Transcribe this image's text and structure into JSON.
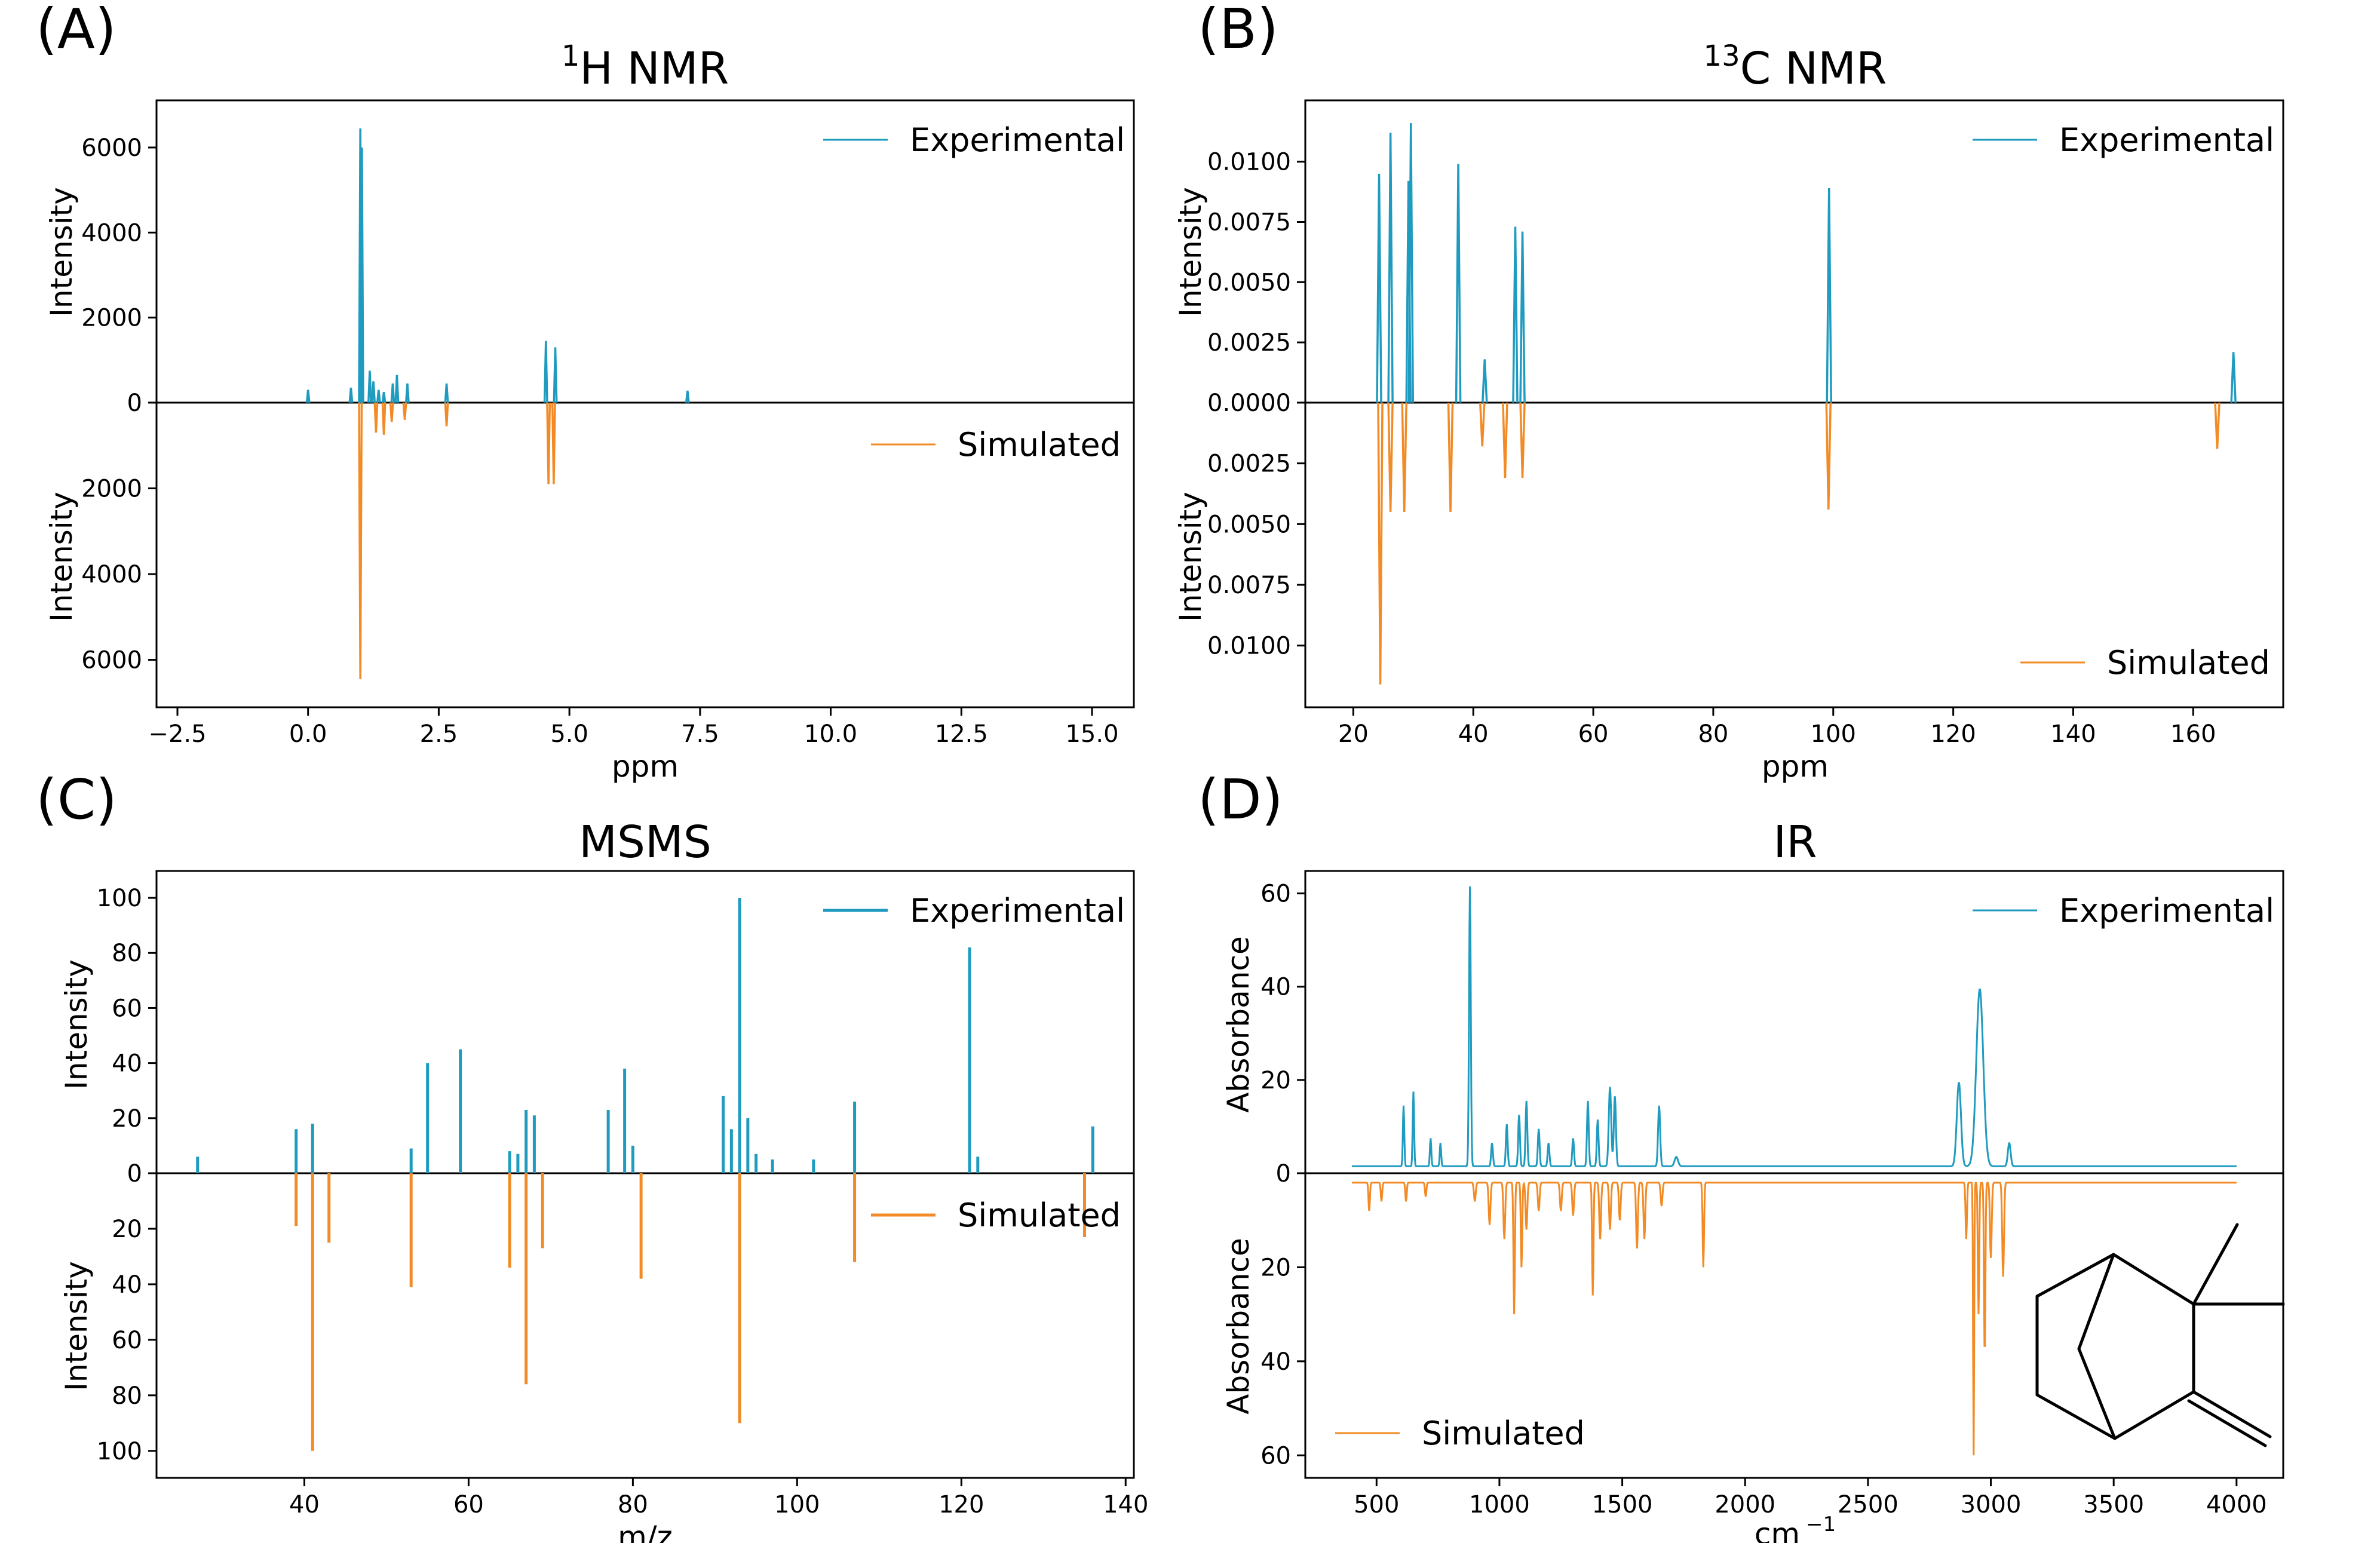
{
  "figure": {
    "colors": {
      "experimental": "#1f9bbf",
      "simulated": "#f28b25",
      "axis": "#000000",
      "molecule": "#000000"
    }
  },
  "chart_data": [
    {
      "panel": "(A)",
      "type": "line",
      "title_sup": "1",
      "title_main": "H NMR",
      "xlabel": "ppm",
      "ylabel_top": "Intensity",
      "ylabel_bottom": "Intensity",
      "xlim": [
        -2.9,
        15.8
      ],
      "ylim_top": [
        0,
        6800
      ],
      "ylim_bottom": [
        0,
        6800
      ],
      "xticks": [
        -2.5,
        0.0,
        2.5,
        5.0,
        7.5,
        10.0,
        12.5,
        15.0
      ],
      "xtick_labels": [
        "−2.5",
        "0.0",
        "2.5",
        "5.0",
        "7.5",
        "10.0",
        "12.5",
        "15.0"
      ],
      "yticks_top": [
        0,
        2000,
        4000,
        6000
      ],
      "ytick_labels_top": [
        "0",
        "2000",
        "4000",
        "6000"
      ],
      "yticks_bottom": [
        2000,
        4000,
        6000
      ],
      "ytick_labels_bottom": [
        "2000",
        "4000",
        "6000"
      ],
      "legend_experimental": "Experimental",
      "legend_simulated": "Simulated",
      "legend_experimental_loc": "top-right",
      "legend_simulated_loc": "top-right-of-lower-half",
      "experimental_peaks": [
        [
          0.0,
          300
        ],
        [
          0.82,
          350
        ],
        [
          1.0,
          6450
        ],
        [
          1.03,
          6000
        ],
        [
          1.18,
          750
        ],
        [
          1.25,
          500
        ],
        [
          1.35,
          300
        ],
        [
          1.45,
          250
        ],
        [
          1.62,
          450
        ],
        [
          1.7,
          650
        ],
        [
          1.9,
          450
        ],
        [
          2.65,
          450
        ],
        [
          4.55,
          1450
        ],
        [
          4.73,
          1300
        ],
        [
          7.26,
          280
        ]
      ],
      "simulated_peaks": [
        [
          1.0,
          6450
        ],
        [
          1.3,
          700
        ],
        [
          1.45,
          750
        ],
        [
          1.6,
          450
        ],
        [
          1.85,
          400
        ],
        [
          2.65,
          550
        ],
        [
          4.6,
          1900
        ],
        [
          4.7,
          1900
        ]
      ],
      "peak_width": 0.025
    },
    {
      "panel": "(B)",
      "type": "line",
      "title_sup": "13",
      "title_main": "C NMR",
      "xlabel": "ppm",
      "ylabel_top": "Intensity",
      "ylabel_bottom": "Intensity",
      "xlim": [
        12,
        175
      ],
      "ylim_top": [
        0,
        0.012
      ],
      "ylim_bottom": [
        0,
        0.012
      ],
      "xticks": [
        20,
        40,
        60,
        80,
        100,
        120,
        140,
        160
      ],
      "xtick_labels": [
        "20",
        "40",
        "60",
        "80",
        "100",
        "120",
        "140",
        "160"
      ],
      "yticks_top": [
        0,
        0.0025,
        0.005,
        0.0075,
        0.01
      ],
      "ytick_labels_top": [
        "0.0000",
        "0.0025",
        "0.0050",
        "0.0075",
        "0.0100"
      ],
      "yticks_bottom": [
        0.0025,
        0.005,
        0.0075,
        0.01
      ],
      "ytick_labels_bottom": [
        "0.0025",
        "0.0050",
        "0.0075",
        "0.0100"
      ],
      "legend_experimental": "Experimental",
      "legend_simulated": "Simulated",
      "legend_experimental_loc": "top-right",
      "legend_simulated_loc": "lower-right",
      "experimental_peaks": [
        [
          24.3,
          0.0095
        ],
        [
          26.2,
          0.0112
        ],
        [
          29.2,
          0.0092
        ],
        [
          29.6,
          0.0116
        ],
        [
          37.5,
          0.0099
        ],
        [
          41.9,
          0.0018
        ],
        [
          47.0,
          0.0073
        ],
        [
          48.2,
          0.0071
        ],
        [
          99.3,
          0.0089
        ],
        [
          166.7,
          0.0021
        ]
      ],
      "simulated_peaks": [
        [
          24.5,
          0.0116
        ],
        [
          26.2,
          0.0045
        ],
        [
          28.5,
          0.0045
        ],
        [
          36.2,
          0.0045
        ],
        [
          41.5,
          0.0018
        ],
        [
          45.3,
          0.0031
        ],
        [
          48.2,
          0.0031
        ],
        [
          99.2,
          0.0044
        ],
        [
          164.0,
          0.0019
        ]
      ],
      "peak_width": 0.35
    },
    {
      "panel": "(C)",
      "type": "bar",
      "title_main": "MSMS",
      "xlabel": "m/z",
      "ylabel_top": "Intensity",
      "ylabel_bottom": "Intensity",
      "xlim": [
        22,
        141
      ],
      "ylim_top": [
        0,
        105
      ],
      "ylim_bottom": [
        0,
        105
      ],
      "xticks": [
        40,
        60,
        80,
        100,
        120,
        140
      ],
      "xtick_labels": [
        "40",
        "60",
        "80",
        "100",
        "120",
        "140"
      ],
      "yticks_top": [
        0,
        20,
        40,
        60,
        80,
        100
      ],
      "ytick_labels_top": [
        "0",
        "20",
        "40",
        "60",
        "80",
        "100"
      ],
      "yticks_bottom": [
        20,
        40,
        60,
        80,
        100
      ],
      "ytick_labels_bottom": [
        "20",
        "40",
        "60",
        "80",
        "100"
      ],
      "legend_experimental": "Experimental",
      "legend_simulated": "Simulated",
      "legend_experimental_loc": "top-right",
      "legend_simulated_loc": "top-right-of-lower-half",
      "experimental_peaks": [
        [
          27,
          6
        ],
        [
          39,
          16
        ],
        [
          41,
          18
        ],
        [
          53,
          9
        ],
        [
          55,
          40
        ],
        [
          59,
          45
        ],
        [
          65,
          8
        ],
        [
          66,
          7
        ],
        [
          67,
          23
        ],
        [
          68,
          21
        ],
        [
          77,
          23
        ],
        [
          79,
          38
        ],
        [
          80,
          10
        ],
        [
          91,
          28
        ],
        [
          92,
          16
        ],
        [
          93,
          100
        ],
        [
          94,
          20
        ],
        [
          95,
          7
        ],
        [
          97,
          5
        ],
        [
          102,
          5
        ],
        [
          107,
          26
        ],
        [
          121,
          82
        ],
        [
          122,
          6
        ],
        [
          136,
          17
        ]
      ],
      "simulated_peaks": [
        [
          39,
          19
        ],
        [
          41,
          100
        ],
        [
          43,
          25
        ],
        [
          53,
          41
        ],
        [
          65,
          34
        ],
        [
          67,
          76
        ],
        [
          69,
          27
        ],
        [
          81,
          38
        ],
        [
          93,
          90
        ],
        [
          107,
          32
        ],
        [
          135,
          23
        ]
      ]
    },
    {
      "panel": "(D)",
      "type": "line",
      "title_main": "IR",
      "xlabel": "cm",
      "xlabel_sup": "−1",
      "ylabel_top": "Absorbance",
      "ylabel_bottom": "Absorbance",
      "xlim": [
        210,
        4190
      ],
      "ylim_top": [
        0,
        62
      ],
      "ylim_bottom": [
        0,
        62
      ],
      "xticks": [
        500,
        1000,
        1500,
        2000,
        2500,
        3000,
        3500,
        4000
      ],
      "xtick_labels": [
        "500",
        "1000",
        "1500",
        "2000",
        "2500",
        "3000",
        "3500",
        "4000"
      ],
      "yticks_top": [
        0,
        20,
        40,
        60
      ],
      "ytick_labels_top": [
        "0",
        "20",
        "40",
        "60"
      ],
      "yticks_bottom": [
        20,
        40,
        60
      ],
      "ytick_labels_bottom": [
        "20",
        "40",
        "60"
      ],
      "legend_experimental": "Experimental",
      "legend_simulated": "Simulated",
      "legend_experimental_loc": "top-right",
      "legend_simulated_loc": "lower-left",
      "x_range": [
        400,
        4000
      ],
      "experimental_baseline": 1.5,
      "simulated_baseline": 2.0,
      "experimental_bands": [
        [
          610,
          13,
          4
        ],
        [
          650,
          16,
          4
        ],
        [
          720,
          6,
          4
        ],
        [
          760,
          5,
          4
        ],
        [
          880,
          60,
          5
        ],
        [
          970,
          5,
          5
        ],
        [
          1030,
          9,
          5
        ],
        [
          1080,
          11,
          5
        ],
        [
          1110,
          14,
          5
        ],
        [
          1160,
          8,
          5
        ],
        [
          1200,
          5,
          5
        ],
        [
          1300,
          6,
          5
        ],
        [
          1360,
          14,
          5
        ],
        [
          1400,
          10,
          5
        ],
        [
          1450,
          17,
          7
        ],
        [
          1470,
          15,
          6
        ],
        [
          1650,
          13,
          6
        ],
        [
          1720,
          2,
          10
        ],
        [
          2870,
          18,
          12
        ],
        [
          2955,
          38,
          20
        ],
        [
          3075,
          5,
          8
        ]
      ],
      "simulated_bands": [
        [
          470,
          6,
          4
        ],
        [
          520,
          4,
          4
        ],
        [
          620,
          4,
          4
        ],
        [
          700,
          3,
          4
        ],
        [
          900,
          4,
          5
        ],
        [
          960,
          9,
          5
        ],
        [
          1020,
          12,
          5
        ],
        [
          1060,
          28,
          4
        ],
        [
          1090,
          18,
          4
        ],
        [
          1110,
          10,
          5
        ],
        [
          1160,
          6,
          5
        ],
        [
          1250,
          6,
          5
        ],
        [
          1300,
          7,
          5
        ],
        [
          1380,
          24,
          4
        ],
        [
          1410,
          12,
          5
        ],
        [
          1450,
          10,
          5
        ],
        [
          1490,
          8,
          5
        ],
        [
          1560,
          14,
          5
        ],
        [
          1590,
          12,
          5
        ],
        [
          1660,
          5,
          5
        ],
        [
          1830,
          18,
          4
        ],
        [
          2900,
          12,
          4
        ],
        [
          2930,
          58,
          3
        ],
        [
          2950,
          28,
          4
        ],
        [
          2975,
          37,
          4
        ],
        [
          3000,
          16,
          5
        ],
        [
          3050,
          20,
          5
        ]
      ],
      "molecule": "2-methylene-3,3-dimethyl-norbornane (camphene) skeletal structure"
    }
  ]
}
